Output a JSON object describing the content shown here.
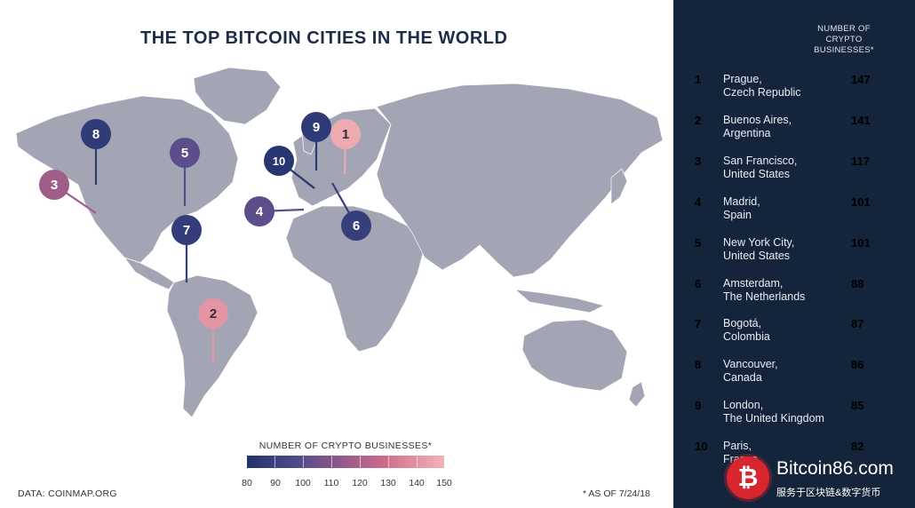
{
  "chart_data": {
    "type": "table",
    "title": "THE TOP BITCOIN CITIES IN THE WORLD",
    "column_header": "NUMBER OF CRYPTO BUSINESSES*",
    "rows": [
      {
        "rank": "1",
        "city": "Prague,",
        "country": "Czech Republic",
        "value": 147
      },
      {
        "rank": "2",
        "city": "Buenos Aires,",
        "country": "Argentina",
        "value": 141
      },
      {
        "rank": "3",
        "city": "San Francisco,",
        "country": "United States",
        "value": 117
      },
      {
        "rank": "4",
        "city": "Madrid,",
        "country": "Spain",
        "value": 101
      },
      {
        "rank": "5",
        "city": "New York City,",
        "country": "United States",
        "value": 101
      },
      {
        "rank": "6",
        "city": "Amsterdam,",
        "country": "The Netherlands",
        "value": 88
      },
      {
        "rank": "7",
        "city": "Bogotá,",
        "country": "Colombia",
        "value": 87
      },
      {
        "rank": "8",
        "city": "Vancouver,",
        "country": "Canada",
        "value": 86
      },
      {
        "rank": "9",
        "city": "London,",
        "country": "The United Kingdom",
        "value": 85
      },
      {
        "rank": "10",
        "city": "Paris,",
        "country": "France",
        "value": 82
      }
    ],
    "color_scale": {
      "title": "NUMBER OF CRYPTO BUSINESSES*",
      "ticks": [
        "80",
        "90",
        "100",
        "110",
        "120",
        "130",
        "140",
        "150"
      ],
      "min": 80,
      "max": 150,
      "low_color": "#22336e",
      "high_color": "#f2b4b6"
    },
    "source": "DATA: COINMAP.ORG",
    "note": "* AS OF 7/24/18"
  },
  "colors": {
    "map_land": "#a3a5b5",
    "panel_bg": "#14243a",
    "title": "#1d2d47"
  },
  "watermark": {
    "logo_glyph": "₿",
    "site": "Bitcoin86.com",
    "subtitle": "服务于区块链&数字货币"
  }
}
